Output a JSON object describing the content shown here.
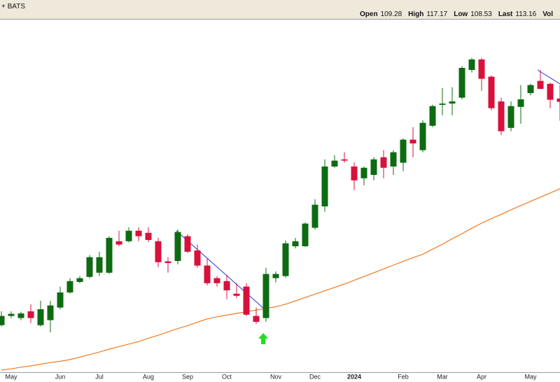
{
  "chart_data": {
    "type": "candlestick",
    "title": "+ BATS",
    "quote": [
      {
        "label": "Open",
        "value": 109.28
      },
      {
        "label": "High",
        "value": 117.17
      },
      {
        "label": "Low",
        "value": 108.53
      },
      {
        "label": "Last",
        "value": 113.16
      },
      {
        "label": "Vol"
      }
    ],
    "categories": [
      null,
      "May",
      null,
      null,
      null,
      null,
      "Jun",
      null,
      null,
      null,
      "Jul",
      null,
      null,
      null,
      null,
      "Aug",
      null,
      null,
      null,
      "Sep",
      null,
      null,
      null,
      "Oct",
      null,
      null,
      null,
      null,
      "Nov",
      null,
      null,
      null,
      "Dec",
      null,
      null,
      null,
      "2024",
      null,
      null,
      null,
      null,
      "Feb",
      null,
      null,
      null,
      "Mar",
      null,
      null,
      null,
      "Apr",
      null,
      null,
      null,
      null,
      "May",
      null,
      null,
      null
    ],
    "open": [
      60.2,
      62.4,
      61.9,
      63.5,
      60.2,
      61.4,
      64.4,
      68.0,
      70.5,
      71.7,
      72.7,
      72.7,
      80.2,
      80.2,
      82.7,
      82.2,
      80.2,
      75.4,
      75.5,
      81.4,
      78.0,
      74.4,
      71.4,
      70.7,
      67.7,
      69.4,
      62.4,
      61.9,
      71.4,
      71.9,
      79.0,
      79.0,
      83.4,
      88.5,
      98.0,
      99.7,
      98.0,
      95.2,
      96.0,
      100.2,
      98.0,
      98.9,
      104.4,
      101.9,
      107.7,
      112.7,
      113.0,
      114.4,
      121.0,
      123.5,
      119.4,
      113.5,
      107.2,
      112.2,
      115.5,
      118.4,
      117.7,
      114.2
    ],
    "high": [
      63.5,
      63.5,
      63.4,
      65.2,
      66.0,
      66.0,
      69.4,
      71.4,
      71.9,
      76.9,
      77.7,
      81.4,
      82.7,
      83.5,
      83.5,
      83.5,
      81.0,
      76.4,
      83.0,
      81.9,
      79.4,
      76.0,
      71.9,
      72.2,
      70.2,
      70.2,
      64.4,
      73.9,
      73.0,
      80.4,
      81.0,
      84.7,
      90.2,
      99.7,
      100.7,
      101.4,
      99.0,
      98.0,
      100.2,
      101.9,
      101.9,
      104.7,
      107.4,
      109.0,
      112.7,
      116.7,
      116.9,
      121.9,
      123.9,
      123.9,
      119.7,
      114.4,
      113.5,
      117.4,
      117.7,
      121.0,
      118.0,
      117.4
    ],
    "low": [
      59.9,
      61.9,
      61.4,
      60.7,
      59.9,
      58.5,
      64.0,
      67.7,
      70.2,
      71.4,
      71.9,
      72.4,
      79.0,
      79.9,
      80.2,
      80.0,
      74.0,
      72.7,
      74.7,
      77.4,
      73.9,
      69.7,
      69.4,
      66.4,
      66.7,
      62.4,
      60.5,
      61.0,
      70.4,
      71.5,
      78.5,
      78.9,
      83.0,
      87.2,
      97.7,
      98.9,
      92.4,
      93.5,
      94.7,
      95.2,
      96.0,
      96.9,
      100.2,
      101.4,
      107.4,
      110.2,
      110.2,
      114.0,
      120.4,
      116.0,
      111.4,
      105.5,
      106.4,
      108.2,
      115.0,
      116.4,
      111.9,
      108.9
    ],
    "close": [
      62.4,
      62.9,
      63.0,
      61.9,
      64.0,
      64.9,
      68.0,
      70.7,
      71.4,
      76.4,
      76.4,
      81.0,
      79.4,
      82.7,
      81.4,
      80.5,
      75.2,
      75.0,
      82.4,
      77.7,
      74.4,
      70.2,
      70.2,
      68.5,
      67.2,
      62.7,
      61.0,
      72.4,
      72.4,
      79.7,
      80.2,
      84.4,
      88.9,
      98.0,
      99.4,
      99.4,
      94.7,
      97.7,
      99.7,
      97.7,
      101.4,
      104.4,
      103.5,
      108.4,
      112.4,
      113.0,
      113.5,
      121.5,
      123.5,
      118.9,
      111.9,
      106.4,
      112.4,
      114.0,
      117.4,
      116.5,
      113.9,
      113.4
    ],
    "up_color": "#0d6b12",
    "down_color": "#d8113c",
    "moving_average": {
      "color": "#f07a22",
      "values": [
        49.5,
        49.8,
        50.2,
        50.5,
        50.9,
        51.3,
        51.6,
        52.0,
        52.6,
        53.2,
        53.8,
        54.5,
        55.1,
        55.7,
        56.3,
        57.1,
        57.8,
        58.6,
        59.4,
        60.1,
        60.9,
        61.7,
        62.2,
        62.6,
        63.0,
        63.4,
        63.8,
        64.2,
        64.6,
        65.2,
        66.0,
        66.8,
        67.6,
        68.4,
        69.2,
        70.0,
        70.9,
        71.8,
        72.7,
        73.6,
        74.5,
        75.4,
        76.3,
        77.1,
        78.3,
        79.5,
        80.8,
        82.0,
        83.3,
        84.5,
        85.6,
        86.6,
        87.7,
        88.7,
        89.7,
        90.7,
        91.7,
        92.7
      ]
    },
    "ylim": [
      49,
      133
    ]
  }
}
